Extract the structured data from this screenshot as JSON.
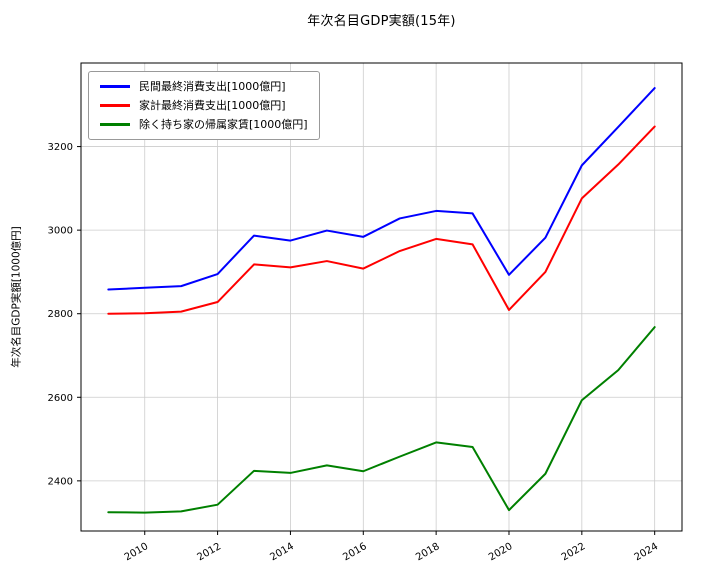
{
  "title": "年次名目GDP実額(15年)",
  "chart_data": {
    "type": "line",
    "x": [
      2009,
      2010,
      2011,
      2012,
      2013,
      2014,
      2015,
      2016,
      2017,
      2018,
      2019,
      2020,
      2021,
      2022,
      2023,
      2024
    ],
    "series": [
      {
        "name": "民間最終消費支出[1000億円]",
        "color": "#0000ff",
        "values": [
          2858,
          2862,
          2866,
          2895,
          2987,
          2975,
          2999,
          2984,
          3028,
          3046,
          3040,
          2893,
          2982,
          3155,
          3247,
          3340
        ]
      },
      {
        "name": "家計最終消費支出[1000億円]",
        "color": "#ff0000",
        "values": [
          2800,
          2801,
          2805,
          2828,
          2918,
          2911,
          2926,
          2908,
          2950,
          2979,
          2966,
          2809,
          2900,
          3076,
          3157,
          3248
        ]
      },
      {
        "name": "除く持ち家の帰属家賃[1000億円]",
        "color": "#008000",
        "values": [
          2325,
          2324,
          2327,
          2343,
          2424,
          2419,
          2437,
          2423,
          2458,
          2492,
          2481,
          2330,
          2417,
          2593,
          2665,
          2768
        ]
      }
    ],
    "xlabel": "",
    "ylabel": "年次名目GDP実額[1000億円]",
    "xticks": [
      2010,
      2012,
      2014,
      2016,
      2018,
      2020,
      2022,
      2024
    ],
    "yticks": [
      2400,
      2600,
      2800,
      3000,
      3200
    ],
    "xlim": [
      2008.25,
      2024.75
    ],
    "ylim": [
      2280,
      3400
    ],
    "grid": true,
    "legend_position": "upper left",
    "grid_color": "#cccccc",
    "frame_color": "#000000"
  }
}
